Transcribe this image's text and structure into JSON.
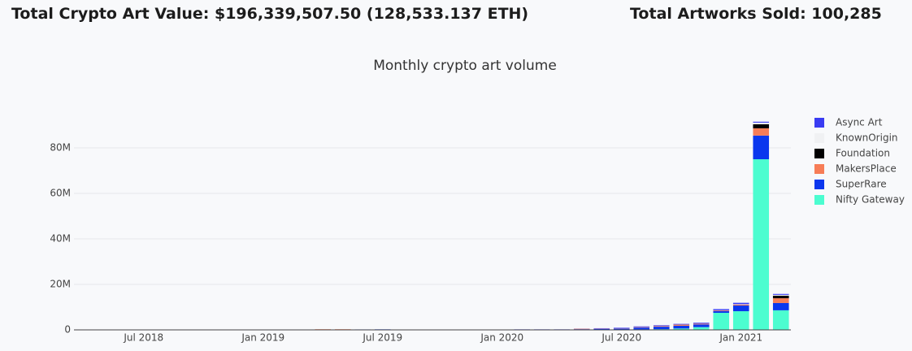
{
  "header": {
    "total_value": "Total Crypto Art Value: $196,339,507.50 (128,533.137 ETH)",
    "total_sold": "Total Artworks Sold: 100,285"
  },
  "chart_data": {
    "type": "stacked_bar",
    "title": "Monthly crypto art volume",
    "categories": [
      null,
      null,
      null,
      "Jul 2018",
      null,
      null,
      null,
      null,
      null,
      "Jan 2019",
      null,
      null,
      null,
      null,
      null,
      "Jul 2019",
      null,
      null,
      null,
      null,
      null,
      "Jan 2020",
      null,
      null,
      null,
      null,
      null,
      "Jul 2020",
      null,
      null,
      null,
      null,
      null,
      "Jan 2021",
      null,
      null
    ],
    "series": [
      {
        "name": "Nifty Gateway",
        "color": "#4cfdd0",
        "values": [
          0,
          0,
          0,
          0,
          0,
          0,
          0,
          0,
          0,
          0,
          0,
          0,
          0,
          0,
          100000,
          150000,
          0,
          0,
          0,
          0,
          0,
          0,
          0,
          0,
          0,
          0,
          0,
          0,
          200000,
          300000,
          600000,
          1200000,
          7500000,
          8200000,
          75000000,
          8600000
        ]
      },
      {
        "name": "SuperRare",
        "color": "#0b37ee",
        "values": [
          150000,
          150000,
          150000,
          150000,
          150000,
          150000,
          150000,
          0,
          150000,
          150000,
          150000,
          150000,
          100000,
          100000,
          100000,
          100000,
          50000,
          50000,
          50000,
          50000,
          0,
          150000,
          150000,
          150000,
          150000,
          300000,
          400000,
          600000,
          800000,
          1100000,
          1200000,
          1200000,
          800000,
          2500000,
          10400000,
          3200000
        ]
      },
      {
        "name": "MakersPlace",
        "color": "#f77d57",
        "values": [
          0,
          0,
          0,
          0,
          0,
          0,
          0,
          0,
          0,
          0,
          0,
          0,
          200000,
          200000,
          0,
          0,
          0,
          0,
          0,
          0,
          0,
          0,
          0,
          0,
          0,
          200000,
          100000,
          100000,
          200000,
          300000,
          500000,
          300000,
          300000,
          400000,
          3200000,
          2100000
        ]
      },
      {
        "name": "Foundation",
        "color": "#000000",
        "values": [
          0,
          0,
          0,
          0,
          0,
          0,
          0,
          0,
          0,
          0,
          0,
          0,
          0,
          0,
          0,
          0,
          0,
          0,
          0,
          0,
          0,
          0,
          0,
          0,
          0,
          0,
          0,
          0,
          0,
          0,
          0,
          0,
          0,
          0,
          1800000,
          1100000
        ]
      },
      {
        "name": "KnownOrigin",
        "color": "#f0f1f3",
        "values": [
          30000,
          30000,
          30000,
          30000,
          30000,
          30000,
          30000,
          0,
          30000,
          30000,
          30000,
          30000,
          30000,
          30000,
          30000,
          30000,
          30000,
          30000,
          30000,
          30000,
          0,
          30000,
          30000,
          30000,
          30000,
          30000,
          30000,
          30000,
          30000,
          30000,
          30000,
          30000,
          30000,
          200000,
          700000,
          400000
        ]
      },
      {
        "name": "Async Art",
        "color": "#3a3cf2",
        "values": [
          0,
          0,
          0,
          0,
          0,
          0,
          0,
          0,
          0,
          0,
          0,
          0,
          0,
          0,
          0,
          0,
          0,
          0,
          0,
          0,
          0,
          0,
          50000,
          50000,
          50000,
          50000,
          200000,
          200000,
          300000,
          300000,
          300000,
          400000,
          500000,
          600000,
          400000,
          400000
        ]
      }
    ],
    "ylim": [
      0,
      95000000
    ],
    "yticks": [
      0,
      {
        "value": 20000000,
        "label": "20M"
      },
      {
        "value": 40000000,
        "label": "40M"
      },
      {
        "value": 60000000,
        "label": "60M"
      },
      {
        "value": 80000000,
        "label": "80M"
      }
    ],
    "grid": true,
    "legend": "right"
  }
}
